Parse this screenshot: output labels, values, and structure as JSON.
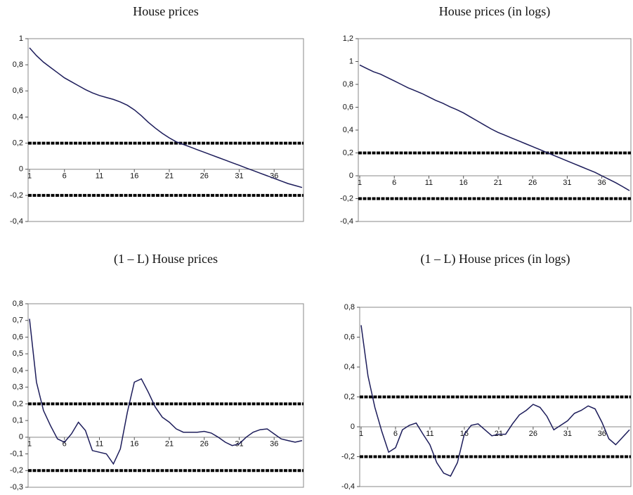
{
  "chart_data": [
    {
      "type": "line",
      "title": "House prices",
      "categories": [
        1,
        null,
        null,
        null,
        null,
        6,
        null,
        null,
        null,
        null,
        11,
        null,
        null,
        null,
        null,
        16,
        null,
        null,
        null,
        null,
        21,
        null,
        null,
        null,
        null,
        26,
        null,
        null,
        null,
        null,
        31,
        null,
        null,
        null,
        null,
        36,
        null,
        null,
        null,
        null
      ],
      "values": [
        0.93,
        0.87,
        0.82,
        0.78,
        0.74,
        0.7,
        0.67,
        0.64,
        0.61,
        0.585,
        0.565,
        0.55,
        0.535,
        0.515,
        0.49,
        0.455,
        0.41,
        0.36,
        0.315,
        0.275,
        0.24,
        0.21,
        0.19,
        0.17,
        0.15,
        0.13,
        0.11,
        0.09,
        0.07,
        0.05,
        0.03,
        0.01,
        -0.01,
        -0.03,
        -0.05,
        -0.07,
        -0.09,
        -0.11,
        -0.125,
        -0.14
      ],
      "color": "#1c1c5a",
      "ylim": [
        -0.4,
        1
      ],
      "yticks": [
        {
          "value": -0.4,
          "label": "-0,4"
        },
        {
          "value": -0.2,
          "label": "-0,2"
        },
        0,
        {
          "value": 0.2,
          "label": "0,2"
        },
        {
          "value": 0.4,
          "label": "0,4"
        },
        {
          "value": 0.6,
          "label": "0,6"
        },
        {
          "value": 0.8,
          "label": "0,8"
        },
        1
      ],
      "bands": [
        0.2,
        -0.2
      ],
      "grid": false
    },
    {
      "type": "line",
      "title": "House prices (in logs)",
      "categories": [
        1,
        null,
        null,
        null,
        null,
        6,
        null,
        null,
        null,
        null,
        11,
        null,
        null,
        null,
        null,
        16,
        null,
        null,
        null,
        null,
        21,
        null,
        null,
        null,
        null,
        26,
        null,
        null,
        null,
        null,
        31,
        null,
        null,
        null,
        null,
        36,
        null,
        null,
        null,
        null
      ],
      "values": [
        0.97,
        0.94,
        0.91,
        0.89,
        0.86,
        0.83,
        0.8,
        0.77,
        0.745,
        0.72,
        0.69,
        0.66,
        0.635,
        0.605,
        0.58,
        0.55,
        0.515,
        0.48,
        0.445,
        0.41,
        0.38,
        0.355,
        0.33,
        0.305,
        0.28,
        0.255,
        0.23,
        0.205,
        0.18,
        0.155,
        0.13,
        0.105,
        0.08,
        0.055,
        0.03,
        0.0,
        -0.03,
        -0.06,
        -0.095,
        -0.13
      ],
      "color": "#1c1c5a",
      "ylim": [
        -0.4,
        1.2
      ],
      "yticks": [
        {
          "value": -0.4,
          "label": "-0,4"
        },
        {
          "value": -0.2,
          "label": "-0,2"
        },
        0,
        {
          "value": 0.2,
          "label": "0,2"
        },
        {
          "value": 0.4,
          "label": "0,4"
        },
        {
          "value": 0.6,
          "label": "0,6"
        },
        {
          "value": 0.8,
          "label": "0,8"
        },
        1,
        {
          "value": 1.2,
          "label": "1,2"
        }
      ],
      "bands": [
        0.2,
        -0.2
      ],
      "grid": false
    },
    {
      "type": "line",
      "title": "(1 – L) House prices",
      "categories": [
        1,
        null,
        null,
        null,
        null,
        6,
        null,
        null,
        null,
        null,
        11,
        null,
        null,
        null,
        null,
        16,
        null,
        null,
        null,
        null,
        21,
        null,
        null,
        null,
        null,
        26,
        null,
        null,
        null,
        null,
        31,
        null,
        null,
        null,
        null,
        36,
        null,
        null,
        null,
        null
      ],
      "values": [
        0.71,
        0.33,
        0.16,
        0.07,
        -0.01,
        -0.03,
        0.02,
        0.09,
        0.04,
        -0.08,
        -0.09,
        -0.1,
        -0.16,
        -0.07,
        0.15,
        0.33,
        0.35,
        0.27,
        0.18,
        0.12,
        0.09,
        0.05,
        0.03,
        0.03,
        0.03,
        0.035,
        0.025,
        0.0,
        -0.03,
        -0.05,
        -0.04,
        0.0,
        0.03,
        0.045,
        0.05,
        0.02,
        -0.01,
        -0.02,
        -0.03,
        -0.02
      ],
      "color": "#1c1c5a",
      "ylim": [
        -0.3,
        0.8
      ],
      "yticks": [
        {
          "value": -0.3,
          "label": "-0,3"
        },
        {
          "value": -0.2,
          "label": "-0,2"
        },
        {
          "value": -0.1,
          "label": "-0,1"
        },
        0,
        {
          "value": 0.1,
          "label": "0,1"
        },
        {
          "value": 0.2,
          "label": "0,2"
        },
        {
          "value": 0.3,
          "label": "0,3"
        },
        {
          "value": 0.4,
          "label": "0,4"
        },
        {
          "value": 0.5,
          "label": "0,5"
        },
        {
          "value": 0.6,
          "label": "0,6"
        },
        {
          "value": 0.7,
          "label": "0,7"
        },
        {
          "value": 0.8,
          "label": "0,8"
        }
      ],
      "bands": [
        0.2,
        -0.2
      ],
      "grid": false
    },
    {
      "type": "line",
      "title": "(1 – L) House prices (in logs)",
      "categories": [
        1,
        null,
        null,
        null,
        null,
        6,
        null,
        null,
        null,
        null,
        11,
        null,
        null,
        null,
        null,
        16,
        null,
        null,
        null,
        null,
        21,
        null,
        null,
        null,
        null,
        26,
        null,
        null,
        null,
        null,
        31,
        null,
        null,
        null,
        null,
        36,
        null,
        null,
        null,
        null
      ],
      "values": [
        0.68,
        0.34,
        0.13,
        -0.03,
        -0.17,
        -0.14,
        -0.02,
        0.01,
        0.025,
        -0.05,
        -0.12,
        -0.24,
        -0.31,
        -0.33,
        -0.24,
        -0.05,
        0.01,
        0.02,
        -0.02,
        -0.06,
        -0.05,
        -0.05,
        0.02,
        0.08,
        0.11,
        0.15,
        0.13,
        0.07,
        -0.02,
        0.01,
        0.04,
        0.09,
        0.11,
        0.14,
        0.12,
        0.03,
        -0.08,
        -0.12,
        -0.07,
        -0.02
      ],
      "color": "#1c1c5a",
      "ylim": [
        -0.4,
        0.8
      ],
      "yticks": [
        {
          "value": -0.4,
          "label": "-0,4"
        },
        {
          "value": -0.2,
          "label": "-0,2"
        },
        0,
        {
          "value": 0.2,
          "label": "0,2"
        },
        {
          "value": 0.4,
          "label": "0,4"
        },
        {
          "value": 0.6,
          "label": "0,6"
        },
        {
          "value": 0.8,
          "label": "0,8"
        }
      ],
      "bands": [
        0.2,
        -0.2
      ],
      "grid": false
    }
  ]
}
